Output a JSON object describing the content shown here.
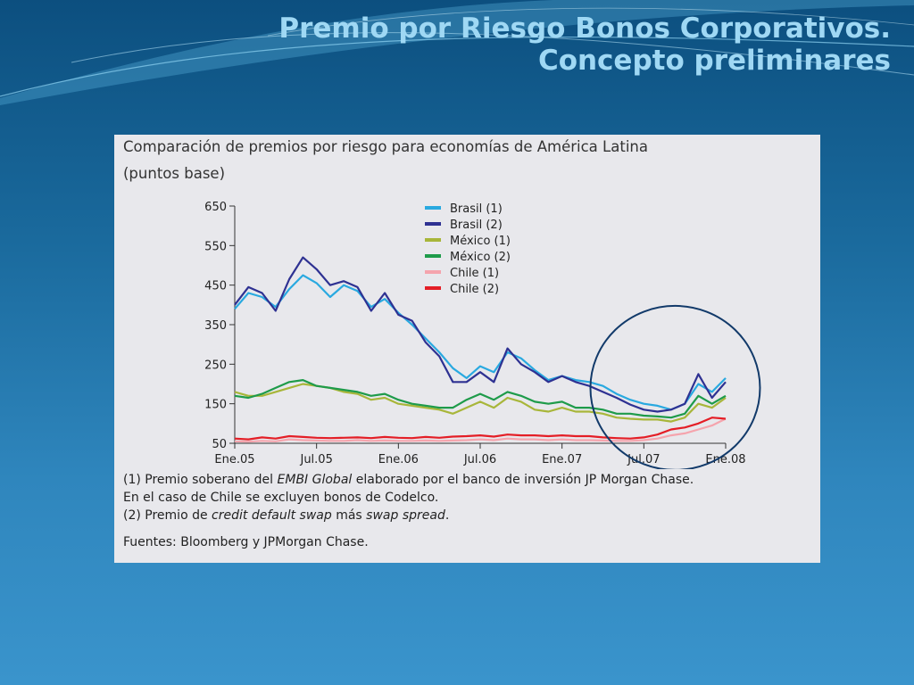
{
  "slide": {
    "title_line1": "Premio por Riesgo Bonos Corporativos.",
    "title_line2": "Concepto preliminares"
  },
  "notes": {
    "n1_a": "(1) Premio soberano del ",
    "n1_b": "EMBI Global",
    "n1_c": " elaborado por el banco de inversión JP Morgan Chase.",
    "n1_d": "En el caso de Chile se excluyen bonos de Codelco.",
    "n2_a": "(2) Premio de ",
    "n2_b": "credit default swap",
    "n2_c": " más ",
    "n2_d": "swap spread",
    "n2_e": ".",
    "source": "Fuentes: Bloomberg y JPMorgan Chase."
  },
  "chart_data": {
    "type": "line",
    "title": "Comparación de premios por riesgo para economías de América Latina",
    "subtitle": "(puntos base)",
    "xlabel": "",
    "ylabel": "",
    "x_ticks": [
      "Ene.05",
      "Jul.05",
      "Ene.06",
      "Jul.06",
      "Ene.07",
      "Jul.07",
      "Ene.08"
    ],
    "x_range": [
      "Ene.05",
      "Ene.08"
    ],
    "y_ticks": [
      50,
      150,
      250,
      350,
      450,
      550,
      650
    ],
    "ylim": [
      50,
      650
    ],
    "grid": false,
    "legend": "top-center",
    "annotation": "circle highlighting Jul.07 – Ene.08",
    "series": [
      {
        "name": "Brasil (1)",
        "color": "#29a9e0",
        "x": [
          0,
          1,
          2,
          3,
          4,
          5,
          6,
          7,
          8,
          9,
          10,
          11,
          12,
          13,
          14,
          15,
          16,
          17,
          18,
          19,
          20,
          21,
          22,
          23,
          24,
          25,
          26,
          27,
          28,
          29,
          30,
          31,
          32,
          33,
          34,
          35,
          36
        ],
        "values": [
          390,
          430,
          420,
          395,
          440,
          475,
          455,
          420,
          450,
          435,
          395,
          415,
          380,
          350,
          315,
          280,
          240,
          215,
          245,
          230,
          280,
          265,
          235,
          210,
          220,
          210,
          205,
          195,
          175,
          160,
          150,
          145,
          135,
          150,
          200,
          180,
          215
        ]
      },
      {
        "name": "Brasil (2)",
        "color": "#2e3192",
        "x": [
          0,
          1,
          2,
          3,
          4,
          5,
          6,
          7,
          8,
          9,
          10,
          11,
          12,
          13,
          14,
          15,
          16,
          17,
          18,
          19,
          20,
          21,
          22,
          23,
          24,
          25,
          26,
          27,
          28,
          29,
          30,
          31,
          32,
          33,
          34,
          35,
          36
        ],
        "values": [
          400,
          445,
          430,
          385,
          465,
          520,
          490,
          450,
          460,
          445,
          385,
          430,
          375,
          360,
          305,
          270,
          205,
          205,
          230,
          205,
          290,
          250,
          230,
          205,
          220,
          205,
          195,
          180,
          165,
          148,
          135,
          130,
          135,
          150,
          225,
          165,
          205
        ]
      },
      {
        "name": "México (1)",
        "color": "#a8b63a",
        "x": [
          0,
          1,
          2,
          3,
          4,
          5,
          6,
          7,
          8,
          9,
          10,
          11,
          12,
          13,
          14,
          15,
          16,
          17,
          18,
          19,
          20,
          21,
          22,
          23,
          24,
          25,
          26,
          27,
          28,
          29,
          30,
          31,
          32,
          33,
          34,
          35,
          36
        ],
        "values": [
          180,
          170,
          170,
          180,
          190,
          200,
          195,
          190,
          180,
          175,
          160,
          165,
          150,
          145,
          140,
          135,
          125,
          140,
          155,
          140,
          165,
          155,
          135,
          130,
          140,
          130,
          130,
          125,
          115,
          112,
          110,
          110,
          105,
          115,
          150,
          140,
          165
        ]
      },
      {
        "name": "México (2)",
        "color": "#1e9b4a",
        "x": [
          0,
          1,
          2,
          3,
          4,
          5,
          6,
          7,
          8,
          9,
          10,
          11,
          12,
          13,
          14,
          15,
          16,
          17,
          18,
          19,
          20,
          21,
          22,
          23,
          24,
          25,
          26,
          27,
          28,
          29,
          30,
          31,
          32,
          33,
          34,
          35,
          36
        ],
        "values": [
          170,
          165,
          175,
          190,
          205,
          210,
          195,
          190,
          185,
          180,
          170,
          175,
          160,
          150,
          145,
          140,
          140,
          160,
          175,
          160,
          180,
          170,
          155,
          150,
          155,
          140,
          140,
          135,
          125,
          125,
          120,
          118,
          115,
          125,
          170,
          150,
          170
        ]
      },
      {
        "name": "Chile (1)",
        "color": "#f5a4ad",
        "x": [
          0,
          1,
          2,
          3,
          4,
          5,
          6,
          7,
          8,
          9,
          10,
          11,
          12,
          13,
          14,
          15,
          16,
          17,
          18,
          19,
          20,
          21,
          22,
          23,
          24,
          25,
          26,
          27,
          28,
          29,
          30,
          31,
          32,
          33,
          34,
          35,
          36
        ],
        "values": [
          55,
          54,
          56,
          55,
          60,
          58,
          57,
          56,
          56,
          58,
          56,
          57,
          56,
          56,
          57,
          56,
          57,
          58,
          60,
          58,
          62,
          60,
          60,
          58,
          60,
          58,
          58,
          57,
          56,
          56,
          58,
          62,
          70,
          75,
          85,
          95,
          112
        ]
      },
      {
        "name": "Chile (2)",
        "color": "#e41e26",
        "x": [
          0,
          1,
          2,
          3,
          4,
          5,
          6,
          7,
          8,
          9,
          10,
          11,
          12,
          13,
          14,
          15,
          16,
          17,
          18,
          19,
          20,
          21,
          22,
          23,
          24,
          25,
          26,
          27,
          28,
          29,
          30,
          31,
          32,
          33,
          34,
          35,
          36
        ],
        "values": [
          62,
          60,
          65,
          62,
          68,
          66,
          64,
          63,
          64,
          65,
          63,
          66,
          64,
          63,
          66,
          64,
          67,
          68,
          70,
          67,
          72,
          70,
          70,
          68,
          70,
          68,
          68,
          65,
          63,
          62,
          65,
          72,
          85,
          90,
          100,
          115,
          112
        ]
      }
    ]
  }
}
